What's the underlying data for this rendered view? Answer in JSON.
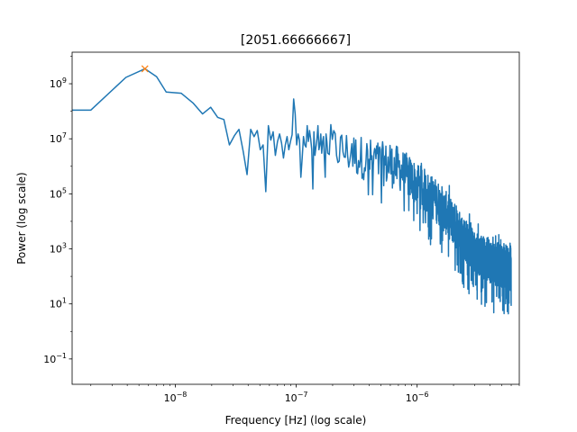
{
  "chart_data": {
    "type": "line",
    "title": "[2051.66666667]",
    "xlabel": "Frequency [Hz] (log scale)",
    "ylabel": "Power (log scale)",
    "xscale": "log",
    "yscale": "log",
    "xlim": [
      1.4e-09,
      7e-06
    ],
    "ylim": [
      0.012,
      14000000000.0
    ],
    "grid": false,
    "x_ticks": [
      {
        "value": 1e-08,
        "base": "10",
        "exp": "−8"
      },
      {
        "value": 1e-07,
        "base": "10",
        "exp": "−7"
      },
      {
        "value": 1e-06,
        "base": "10",
        "exp": "−6"
      }
    ],
    "y_ticks": [
      {
        "value": 1000000000.0,
        "base": "10",
        "exp": "9"
      },
      {
        "value": 10000000.0,
        "base": "10",
        "exp": "7"
      },
      {
        "value": 100000.0,
        "base": "10",
        "exp": "5"
      },
      {
        "value": 1000.0,
        "base": "10",
        "exp": "3"
      },
      {
        "value": 10.0,
        "base": "10",
        "exp": "1"
      },
      {
        "value": 0.1,
        "base": "10",
        "exp": "−1"
      }
    ],
    "series": [
      {
        "color": "#1f77b4",
        "sampling": {
          "f_start": 1.4e-09,
          "f_step": 5.6e-09
        },
        "points": [
          [
            1.4e-09,
            110000000.0
          ],
          [
            2e-09,
            110000000.0
          ],
          [
            3.9e-09,
            1700000000.0
          ],
          [
            5.6e-09,
            3500000000.0
          ],
          [
            7e-09,
            1800000000.0
          ],
          [
            8.4e-09,
            500000000.0
          ],
          [
            1.12e-08,
            450000000.0
          ],
          [
            1.4e-08,
            200000000.0
          ],
          [
            1.68e-08,
            80000000.0
          ],
          [
            1.96e-08,
            140000000.0
          ],
          [
            2.24e-08,
            60000000.0
          ],
          [
            2.52e-08,
            50000000.0
          ],
          [
            2.8e-08,
            6000000.0
          ],
          [
            3.08e-08,
            13000000.0
          ],
          [
            3.36e-08,
            22000000.0
          ],
          [
            3.64e-08,
            3500000.0
          ],
          [
            3.92e-08,
            500000.0
          ],
          [
            4.2e-08,
            22000000.0
          ],
          [
            4.48e-08,
            12000000.0
          ],
          [
            4.76e-08,
            20000000.0
          ],
          [
            5.04e-08,
            4000000.0
          ],
          [
            5.32e-08,
            6000000.0
          ],
          [
            5.6e-08,
            120000.0
          ],
          [
            5.88e-08,
            30000000.0
          ],
          [
            6.16e-08,
            9000000.0
          ],
          [
            6.44e-08,
            18000000.0
          ],
          [
            6.72e-08,
            2500000.0
          ],
          [
            7e-08,
            8000000.0
          ],
          [
            7.28e-08,
            15000000.0
          ],
          [
            7.56e-08,
            7000000.0
          ],
          [
            7.84e-08,
            2000000.0
          ],
          [
            8.12e-08,
            6000000.0
          ],
          [
            8.4e-08,
            12000000.0
          ],
          [
            8.68e-08,
            4000000.0
          ],
          [
            8.96e-08,
            8000000.0
          ],
          [
            9.24e-08,
            14000000.0
          ],
          [
            9.52e-08,
            280000000.0
          ],
          [
            9.8e-08,
            80000000.0
          ],
          [
            1.008e-07,
            6000000.0
          ],
          [
            1.036e-07,
            15000000.0
          ],
          [
            1.064e-07,
            9000000.0
          ],
          [
            1.092e-07,
            400000.0
          ],
          [
            1.12e-07,
            2000000.0
          ],
          [
            1.148e-07,
            12000000.0
          ],
          [
            1.176e-07,
            6000000.0
          ],
          [
            1.204e-07,
            5000000.0
          ],
          [
            1.232e-07,
            30000000.0
          ],
          [
            1.26e-07,
            8000000.0
          ],
          [
            1.288e-07,
            20000000.0
          ],
          [
            1.316e-07,
            10000000.0
          ],
          [
            1.344e-07,
            4000000.0
          ],
          [
            1.372e-07,
            150000.0
          ],
          [
            1.4e-07,
            18000000.0
          ],
          [
            1.428e-07,
            2500000.0
          ],
          [
            1.456e-07,
            5000000.0
          ],
          [
            1.484e-07,
            10000000.0
          ],
          [
            1.512e-07,
            30000000.0
          ],
          [
            1.54e-07,
            4000000.0
          ],
          [
            1.568e-07,
            6000000.0
          ],
          [
            1.596e-07,
            15000000.0
          ],
          [
            1.624e-07,
            3000000.0
          ],
          [
            1.652e-07,
            8000000.0
          ],
          [
            1.68e-07,
            12000000.0
          ],
          [
            1.708e-07,
            2000000.0
          ],
          [
            1.736e-07,
            400000.0
          ],
          [
            1.764e-07,
            15000000.0
          ],
          [
            1.792e-07,
            8000000.0
          ],
          [
            1.82e-07,
            3000000.0
          ]
        ],
        "trend_spectrum": {
          "anchors": [
            [
              1.82e-07,
              10000000.0
            ],
            [
              4e-07,
              3000000.0
            ],
            [
              7e-07,
              1500000.0
            ],
            [
              1e-06,
              400000.0
            ],
            [
              1.5e-06,
              80000.0
            ],
            [
              2e-06,
              15000.0
            ],
            [
              3e-06,
              1200.0
            ],
            [
              4.5e-06,
              500.0
            ],
            [
              6e-06,
              300.0
            ]
          ],
          "f_end": 6e-06,
          "peak_factor": 2.6,
          "dip_factor": 0.04
        }
      }
    ],
    "marker": {
      "x": 5.6e-09,
      "y": 3500000000.0,
      "symbol": "x",
      "color": "#ff7f0e"
    }
  }
}
